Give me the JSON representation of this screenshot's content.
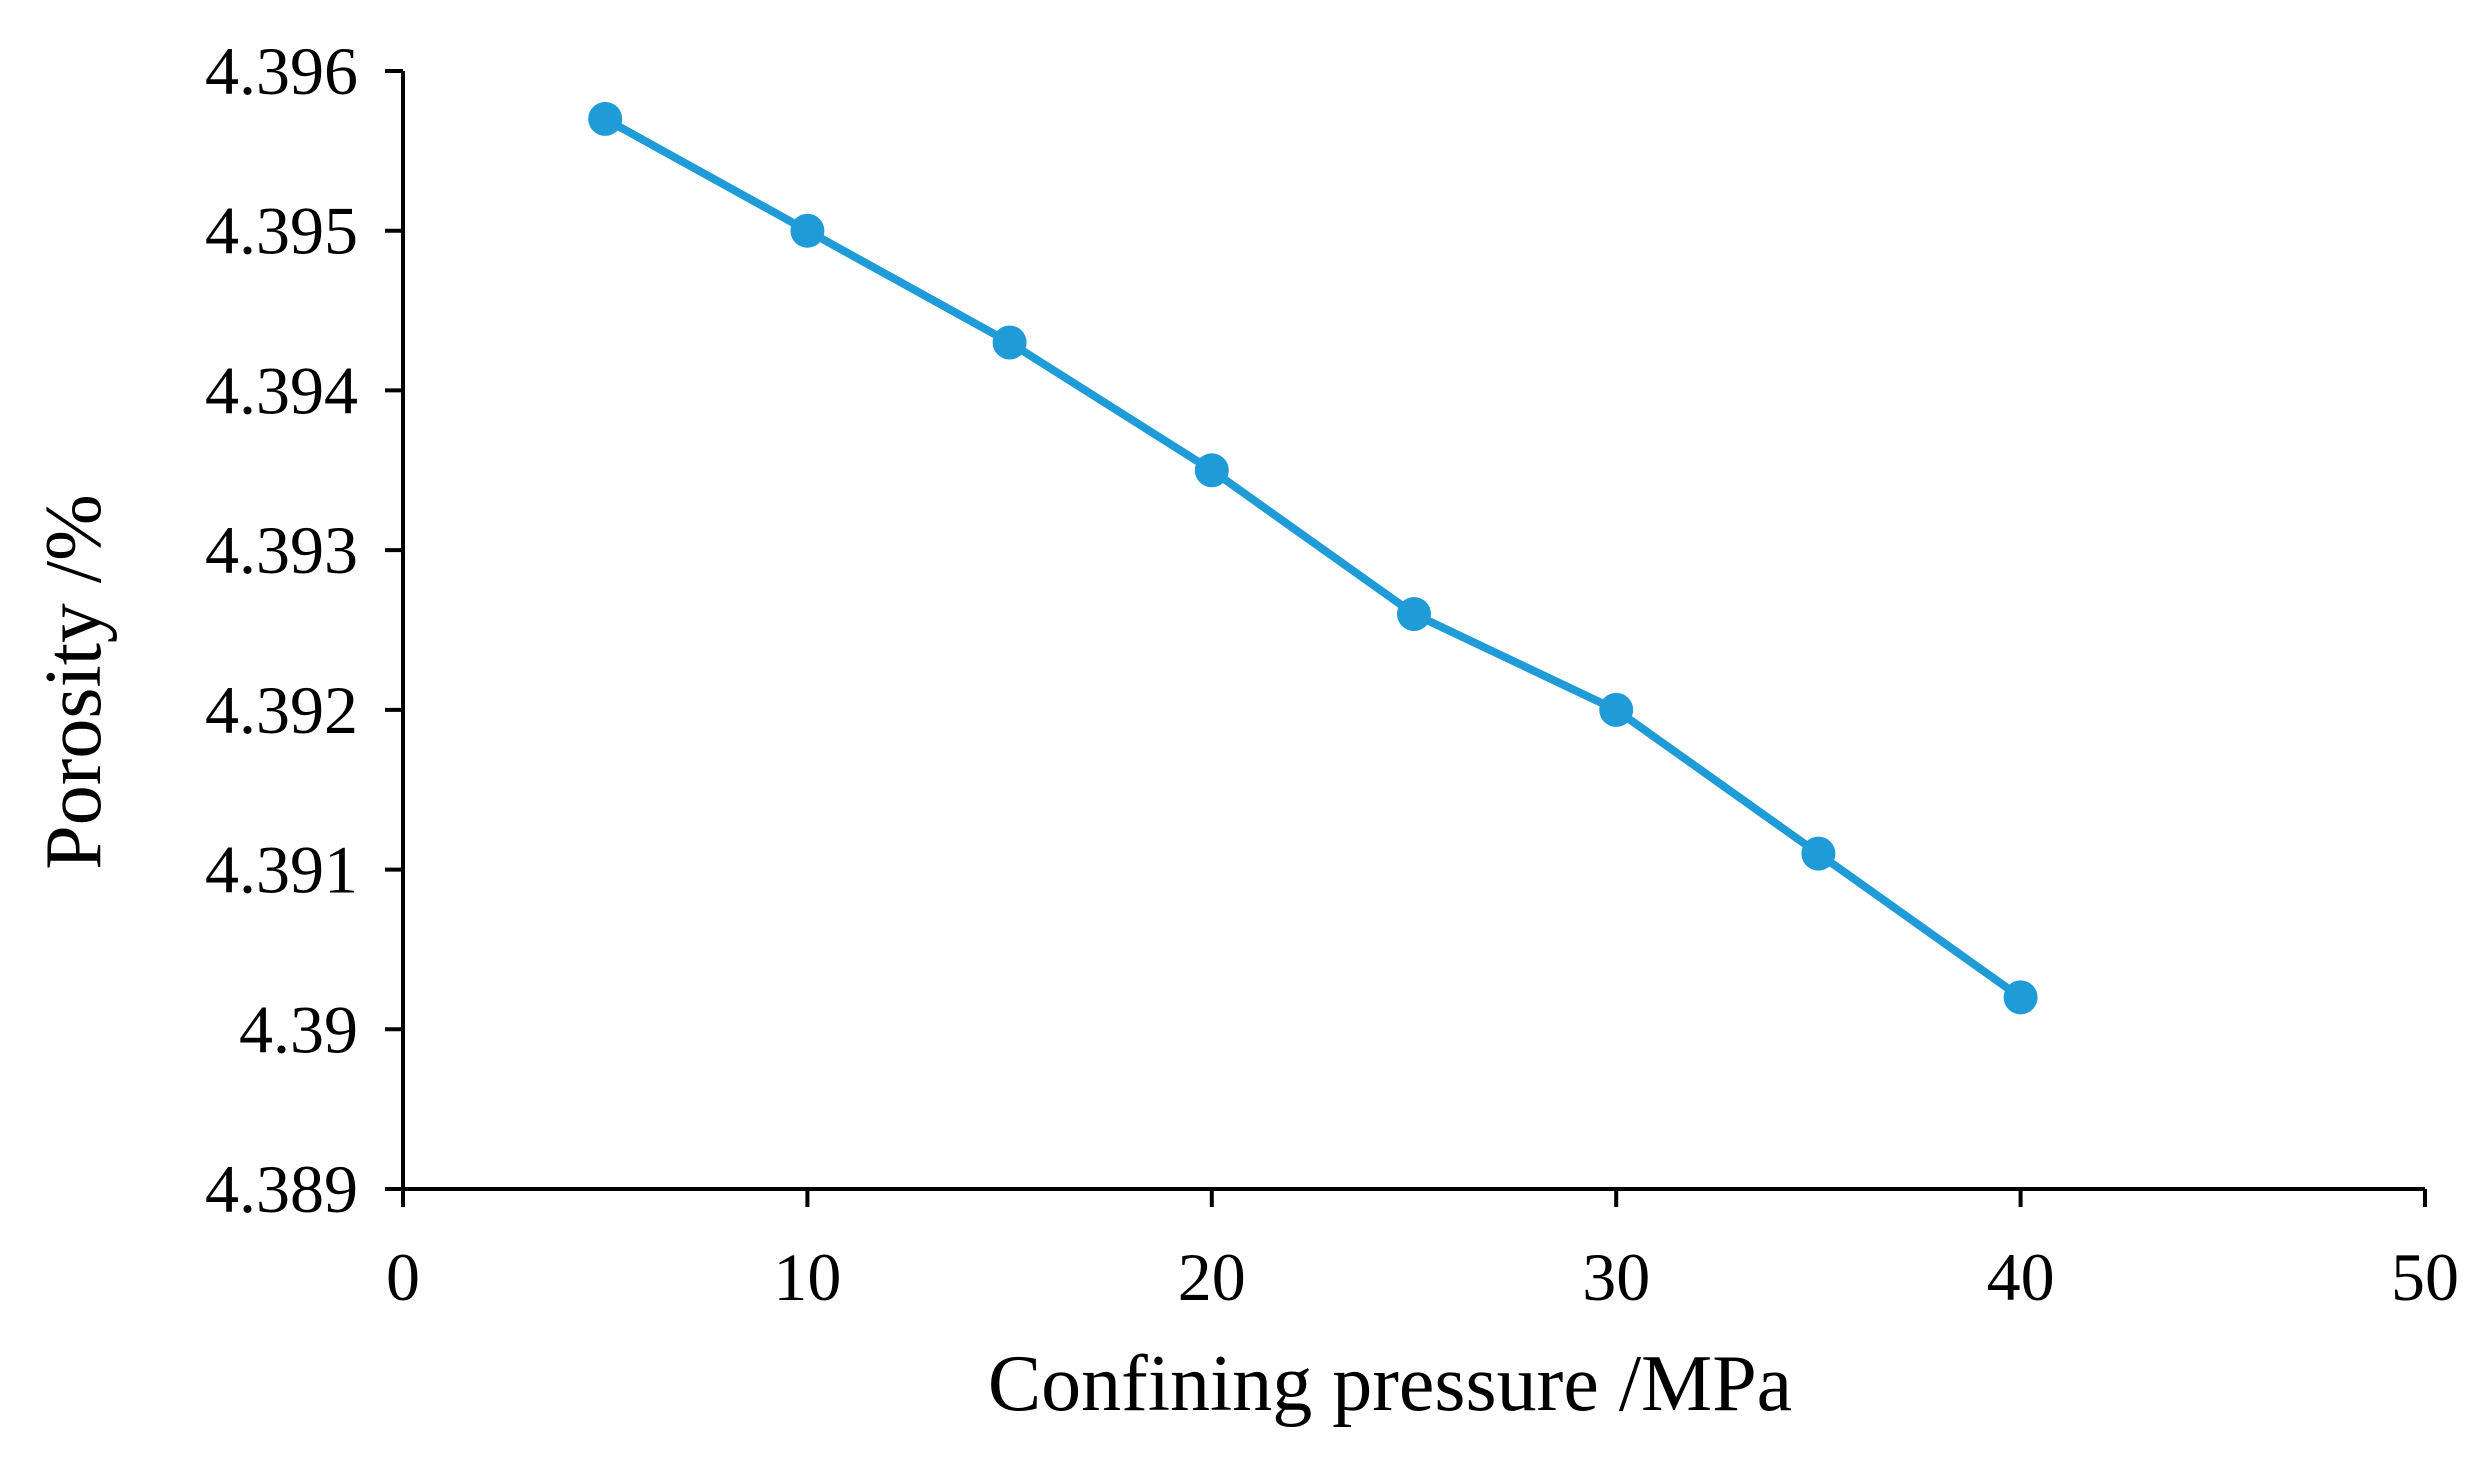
{
  "colors": {
    "series": "#1f9bd7",
    "axis": "#000000",
    "background": "#ffffff"
  },
  "chart_data": {
    "type": "line",
    "title": "",
    "xlabel": "Confining pressure /MPa",
    "ylabel": "Porosity /%",
    "xlim": [
      0,
      50
    ],
    "ylim": [
      4.389,
      4.396
    ],
    "x_ticks": [
      0,
      10,
      20,
      30,
      40,
      50
    ],
    "x_tick_labels": [
      "0",
      "10",
      "20",
      "30",
      "40",
      "50"
    ],
    "y_ticks": [
      4.389,
      4.39,
      4.391,
      4.392,
      4.393,
      4.394,
      4.395,
      4.396
    ],
    "y_tick_labels": [
      "4.389",
      "4.39",
      "4.391",
      "4.392",
      "4.393",
      "4.394",
      "4.395",
      "4.396"
    ],
    "grid": false,
    "legend": "none",
    "series": [
      {
        "x": [
          5,
          10,
          15,
          20,
          25,
          30,
          35,
          40
        ],
        "y": [
          4.3957,
          4.395,
          4.3943,
          4.3935,
          4.3926,
          4.392,
          4.3911,
          4.3902
        ],
        "marker": "circle",
        "color": "#1f9bd7"
      }
    ]
  }
}
